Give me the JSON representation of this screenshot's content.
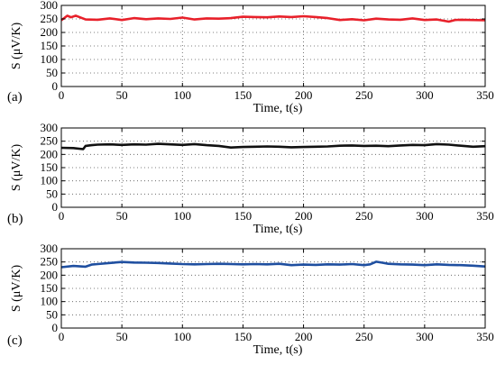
{
  "chart_data": [
    {
      "type": "line",
      "panel_label": "(a)",
      "xlabel": "Time, t(s)",
      "ylabel": "S (μV/K)",
      "xlim": [
        0,
        350
      ],
      "ylim": [
        0,
        300
      ],
      "xticks": [
        "0",
        "50",
        "100",
        "150",
        "200",
        "250",
        "300",
        "350"
      ],
      "yticks": [
        "0",
        "50",
        "100",
        "150",
        "200",
        "250",
        "300"
      ],
      "grid": true,
      "color": "#e8202a",
      "series": [
        {
          "x": [
            0,
            5,
            8,
            12,
            20,
            30,
            40,
            50,
            60,
            70,
            80,
            90,
            100,
            110,
            120,
            130,
            140,
            150,
            160,
            170,
            180,
            190,
            200,
            210,
            220,
            230,
            240,
            250,
            260,
            270,
            280,
            290,
            300,
            310,
            320,
            325,
            330,
            340,
            350
          ],
          "y": [
            245,
            262,
            256,
            262,
            248,
            247,
            252,
            246,
            253,
            249,
            252,
            250,
            255,
            248,
            252,
            251,
            253,
            258,
            257,
            256,
            259,
            257,
            260,
            257,
            253,
            246,
            249,
            245,
            251,
            248,
            247,
            252,
            246,
            248,
            240,
            246,
            247,
            246,
            245
          ]
        }
      ]
    },
    {
      "type": "line",
      "panel_label": "(b)",
      "xlabel": "Time, t(s)",
      "ylabel": "S (μV/K)",
      "xlim": [
        0,
        350
      ],
      "ylim": [
        0,
        300
      ],
      "xticks": [
        "0",
        "50",
        "100",
        "150",
        "200",
        "250",
        "300",
        "350"
      ],
      "yticks": [
        "0",
        "50",
        "100",
        "150",
        "200",
        "250",
        "300"
      ],
      "grid": true,
      "color": "#111111",
      "series": [
        {
          "x": [
            0,
            10,
            18,
            20,
            25,
            30,
            40,
            50,
            60,
            70,
            80,
            90,
            100,
            110,
            120,
            130,
            140,
            150,
            160,
            170,
            180,
            190,
            200,
            210,
            220,
            230,
            240,
            250,
            260,
            270,
            280,
            290,
            300,
            310,
            320,
            330,
            340,
            350
          ],
          "y": [
            225,
            224,
            220,
            232,
            235,
            237,
            238,
            236,
            238,
            237,
            240,
            238,
            236,
            239,
            235,
            232,
            226,
            228,
            229,
            230,
            229,
            227,
            228,
            229,
            230,
            233,
            234,
            232,
            233,
            231,
            234,
            236,
            235,
            239,
            237,
            233,
            229,
            231
          ]
        }
      ]
    },
    {
      "type": "line",
      "panel_label": "(c)",
      "xlabel": "Time, t(s)",
      "ylabel": "S (μV/K)",
      "xlim": [
        0,
        350
      ],
      "ylim": [
        0,
        300
      ],
      "xticks": [
        "0",
        "50",
        "100",
        "150",
        "200",
        "250",
        "300",
        "350"
      ],
      "yticks": [
        "0",
        "50",
        "100",
        "150",
        "200",
        "250",
        "300"
      ],
      "grid": true,
      "color": "#1f4fa0",
      "series": [
        {
          "x": [
            0,
            10,
            20,
            25,
            30,
            40,
            50,
            60,
            70,
            80,
            90,
            100,
            110,
            120,
            130,
            140,
            150,
            160,
            170,
            180,
            190,
            200,
            210,
            220,
            230,
            240,
            250,
            255,
            260,
            265,
            270,
            280,
            290,
            300,
            310,
            320,
            330,
            340,
            350
          ],
          "y": [
            230,
            235,
            232,
            240,
            242,
            246,
            250,
            248,
            247,
            246,
            244,
            242,
            241,
            242,
            243,
            242,
            241,
            242,
            241,
            243,
            238,
            240,
            239,
            241,
            240,
            242,
            238,
            241,
            251,
            247,
            243,
            241,
            240,
            238,
            241,
            239,
            238,
            236,
            233
          ]
        }
      ]
    }
  ]
}
